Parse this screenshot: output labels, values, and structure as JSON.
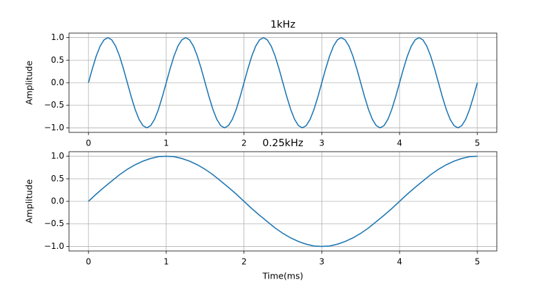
{
  "chart_data": [
    {
      "type": "line",
      "title": "1kHz",
      "ylabel": "Amplitude",
      "color": "#1f77b4",
      "grid": true,
      "xlim": [
        -0.25,
        5.25
      ],
      "ylim": [
        -1.1,
        1.1
      ],
      "xticks": [
        0,
        1,
        2,
        3,
        4,
        5
      ],
      "yticks": [
        {
          "value": -1,
          "label": "−1.0"
        },
        {
          "value": -0.5,
          "label": "−0.5"
        },
        {
          "value": 0,
          "label": "0.0"
        },
        {
          "value": 0.5,
          "label": "0.5"
        },
        {
          "value": 1,
          "label": "1.0"
        }
      ],
      "x": [
        0,
        0.05,
        0.1,
        0.15,
        0.2,
        0.25,
        0.3,
        0.35,
        0.4,
        0.45,
        0.5,
        0.55,
        0.6,
        0.65,
        0.7,
        0.75,
        0.8,
        0.85,
        0.9,
        0.95,
        1,
        1.05,
        1.1,
        1.15,
        1.2,
        1.25,
        1.3,
        1.35,
        1.4,
        1.45,
        1.5,
        1.55,
        1.6,
        1.65,
        1.7,
        1.75,
        1.8,
        1.85,
        1.9,
        1.95,
        2,
        2.05,
        2.1,
        2.15,
        2.2,
        2.25,
        2.3,
        2.35,
        2.4,
        2.45,
        2.5,
        2.55,
        2.6,
        2.65,
        2.7,
        2.75,
        2.8,
        2.85,
        2.9,
        2.95,
        3,
        3.05,
        3.1,
        3.15,
        3.2,
        3.25,
        3.3,
        3.35,
        3.4,
        3.45,
        3.5,
        3.55,
        3.6,
        3.65,
        3.7,
        3.75,
        3.8,
        3.85,
        3.9,
        3.95,
        4,
        4.05,
        4.1,
        4.15,
        4.2,
        4.25,
        4.3,
        4.35,
        4.4,
        4.45,
        4.5,
        4.55,
        4.6,
        4.65,
        4.7,
        4.75,
        4.8,
        4.85,
        4.9,
        4.95,
        5
      ],
      "values": [
        0,
        0.31,
        0.59,
        0.81,
        0.95,
        1,
        0.95,
        0.81,
        0.59,
        0.31,
        0,
        -0.31,
        -0.59,
        -0.81,
        -0.95,
        -1,
        -0.95,
        -0.81,
        -0.59,
        -0.31,
        0,
        0.31,
        0.59,
        0.81,
        0.95,
        1,
        0.95,
        0.81,
        0.59,
        0.31,
        0,
        -0.31,
        -0.59,
        -0.81,
        -0.95,
        -1,
        -0.95,
        -0.81,
        -0.59,
        -0.31,
        0,
        0.31,
        0.59,
        0.81,
        0.95,
        1,
        0.95,
        0.81,
        0.59,
        0.31,
        0,
        -0.31,
        -0.59,
        -0.81,
        -0.95,
        -1,
        -0.95,
        -0.81,
        -0.59,
        -0.31,
        0,
        0.31,
        0.59,
        0.81,
        0.95,
        1,
        0.95,
        0.81,
        0.59,
        0.31,
        0,
        -0.31,
        -0.59,
        -0.81,
        -0.95,
        -1,
        -0.95,
        -0.81,
        -0.59,
        -0.31,
        0,
        0.31,
        0.59,
        0.81,
        0.95,
        1,
        0.95,
        0.81,
        0.59,
        0.31,
        0,
        -0.31,
        -0.59,
        -0.81,
        -0.95,
        -1,
        -0.95,
        -0.81,
        -0.59,
        -0.31,
        0
      ]
    },
    {
      "type": "line",
      "title": "0.25kHz",
      "xlabel": "Time(ms)",
      "ylabel": "Amplitude",
      "color": "#1f77b4",
      "grid": true,
      "xlim": [
        -0.25,
        5.25
      ],
      "ylim": [
        -1.1,
        1.1
      ],
      "xticks": [
        0,
        1,
        2,
        3,
        4,
        5
      ],
      "yticks": [
        {
          "value": -1,
          "label": "−1.0"
        },
        {
          "value": -0.5,
          "label": "−0.5"
        },
        {
          "value": 0,
          "label": "0.0"
        },
        {
          "value": 0.5,
          "label": "0.5"
        },
        {
          "value": 1,
          "label": "1.0"
        }
      ],
      "x": [
        0,
        0.1,
        0.2,
        0.3,
        0.4,
        0.5,
        0.6,
        0.7,
        0.8,
        0.9,
        1,
        1.1,
        1.2,
        1.3,
        1.4,
        1.5,
        1.6,
        1.7,
        1.8,
        1.9,
        2,
        2.1,
        2.2,
        2.3,
        2.4,
        2.5,
        2.6,
        2.7,
        2.8,
        2.9,
        3,
        3.1,
        3.2,
        3.3,
        3.4,
        3.5,
        3.6,
        3.7,
        3.8,
        3.9,
        4,
        4.1,
        4.2,
        4.3,
        4.4,
        4.5,
        4.6,
        4.7,
        4.8,
        4.9,
        5
      ],
      "values": [
        0,
        0.16,
        0.31,
        0.45,
        0.59,
        0.71,
        0.81,
        0.89,
        0.95,
        0.99,
        1,
        0.99,
        0.95,
        0.89,
        0.81,
        0.71,
        0.59,
        0.45,
        0.31,
        0.16,
        0,
        -0.16,
        -0.31,
        -0.45,
        -0.59,
        -0.71,
        -0.81,
        -0.89,
        -0.95,
        -0.99,
        -1,
        -0.99,
        -0.95,
        -0.89,
        -0.81,
        -0.71,
        -0.59,
        -0.45,
        -0.31,
        -0.16,
        0,
        0.16,
        0.31,
        0.45,
        0.59,
        0.71,
        0.81,
        0.89,
        0.95,
        0.99,
        1
      ]
    }
  ]
}
